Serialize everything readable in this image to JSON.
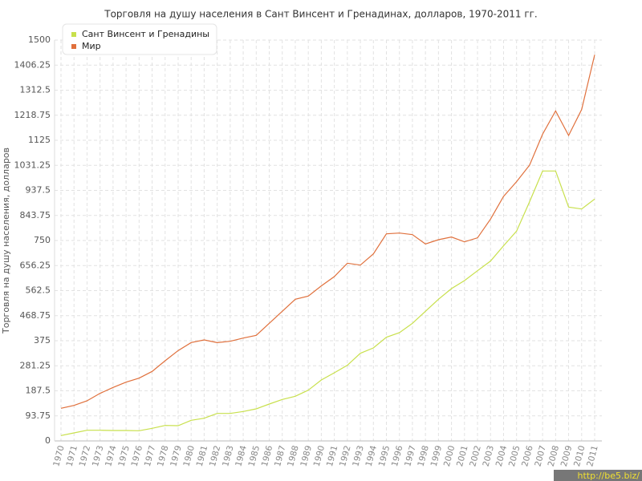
{
  "chart_data": {
    "type": "line",
    "title": "Торговля на душу населения в Сант Винсент и Гренадинах, долларов, 1970-2011 гг.",
    "y_label": "Торговля на душу населения, долларов",
    "watermark": "http://be5.biz/",
    "categories": [
      "1970",
      "1971",
      "1972",
      "1973",
      "1974",
      "1975",
      "1976",
      "1977",
      "1978",
      "1979",
      "1980",
      "1981",
      "1982",
      "1983",
      "1984",
      "1985",
      "1986",
      "1987",
      "1988",
      "1989",
      "1990",
      "1991",
      "1992",
      "1993",
      "1994",
      "1995",
      "1996",
      "1997",
      "1998",
      "1999",
      "2000",
      "2001",
      "2002",
      "2003",
      "2004",
      "2005",
      "2006",
      "2007",
      "2008",
      "2009",
      "2010",
      "2011"
    ],
    "series": [
      {
        "name": "Сант Винсент и Гренадины",
        "color": "#c8e04c",
        "values": [
          20,
          30,
          40,
          40,
          39,
          39,
          38,
          47,
          58,
          57,
          77,
          85,
          103,
          103,
          110,
          120,
          138,
          155,
          167,
          190,
          228,
          255,
          283,
          328,
          348,
          388,
          405,
          440,
          485,
          530,
          570,
          600,
          637,
          673,
          730,
          785,
          895,
          1010,
          1010,
          875,
          868,
          905
        ]
      },
      {
        "name": "Мир",
        "color": "#e0703c",
        "values": [
          122,
          133,
          150,
          178,
          200,
          220,
          235,
          260,
          300,
          338,
          368,
          378,
          368,
          373,
          385,
          395,
          440,
          485,
          530,
          542,
          580,
          615,
          665,
          658,
          700,
          775,
          778,
          772,
          737,
          753,
          763,
          745,
          760,
          830,
          915,
          970,
          1032,
          1148,
          1235,
          1143,
          1240,
          1445
        ]
      }
    ],
    "ylim": [
      0,
      1500
    ],
    "yticks": [
      0,
      93.75,
      187.5,
      281.25,
      375,
      468.75,
      562.5,
      656.25,
      750,
      843.75,
      937.5,
      1031.25,
      1125,
      1218.75,
      1312.5,
      1406.25,
      1500
    ],
    "grid": true,
    "legend": "top-left"
  }
}
